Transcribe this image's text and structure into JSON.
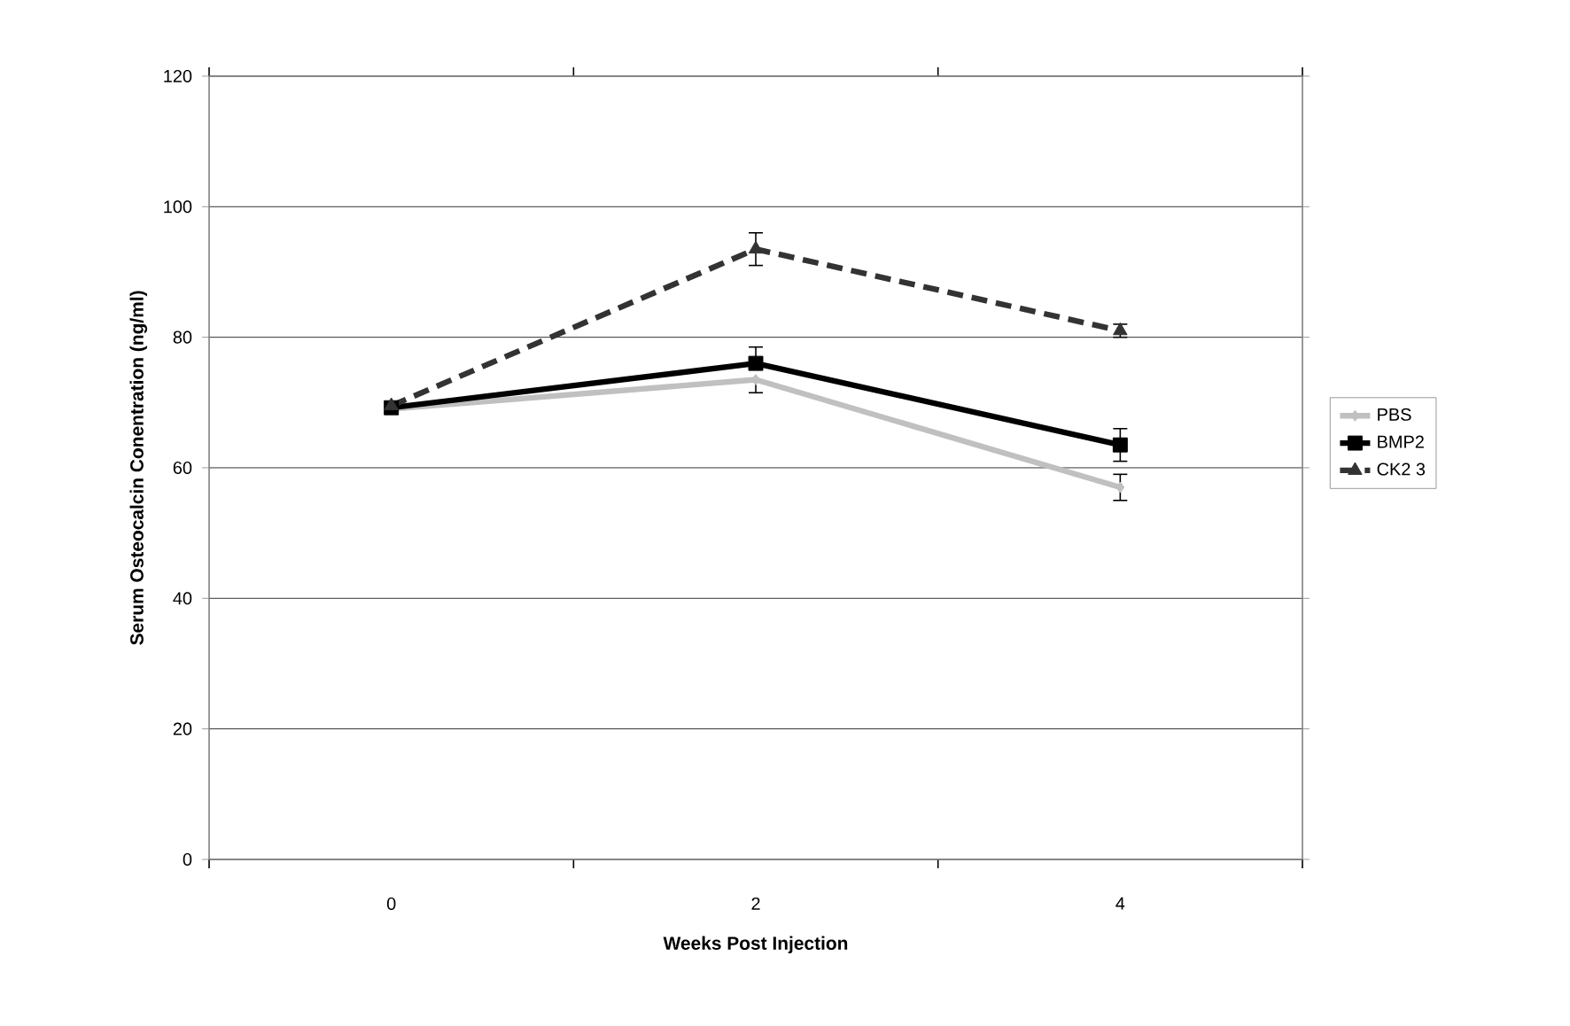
{
  "chart_data": {
    "type": "line",
    "xlabel": "Weeks Post Injection",
    "ylabel": "Serum Osteocalcin Conentration (ng/ml)",
    "categories": [
      "0",
      "2",
      "4"
    ],
    "series": [
      {
        "name": "PBS",
        "color": "#c0c0c0",
        "values": [
          69,
          73.5,
          57
        ],
        "errors": [
          null,
          [
            71.5,
            73.5
          ],
          2
        ],
        "marker": "diamond",
        "line_style": "solid"
      },
      {
        "name": "BMP2",
        "color": "#000000",
        "values": [
          69.2,
          76,
          63.5
        ],
        "errors": [
          null,
          [
            76,
            78.5
          ],
          2.5
        ],
        "marker": "square",
        "line_style": "solid"
      },
      {
        "name": "CK2 3",
        "color": "#333333",
        "values": [
          69.5,
          93.5,
          81
        ],
        "errors": [
          null,
          2.5,
          1
        ],
        "marker": "triangle",
        "line_style": "dashed"
      }
    ],
    "ylim": [
      0,
      120
    ],
    "yticks": [
      0,
      20,
      40,
      60,
      80,
      100,
      120
    ],
    "grid": "y",
    "legend": "right"
  }
}
